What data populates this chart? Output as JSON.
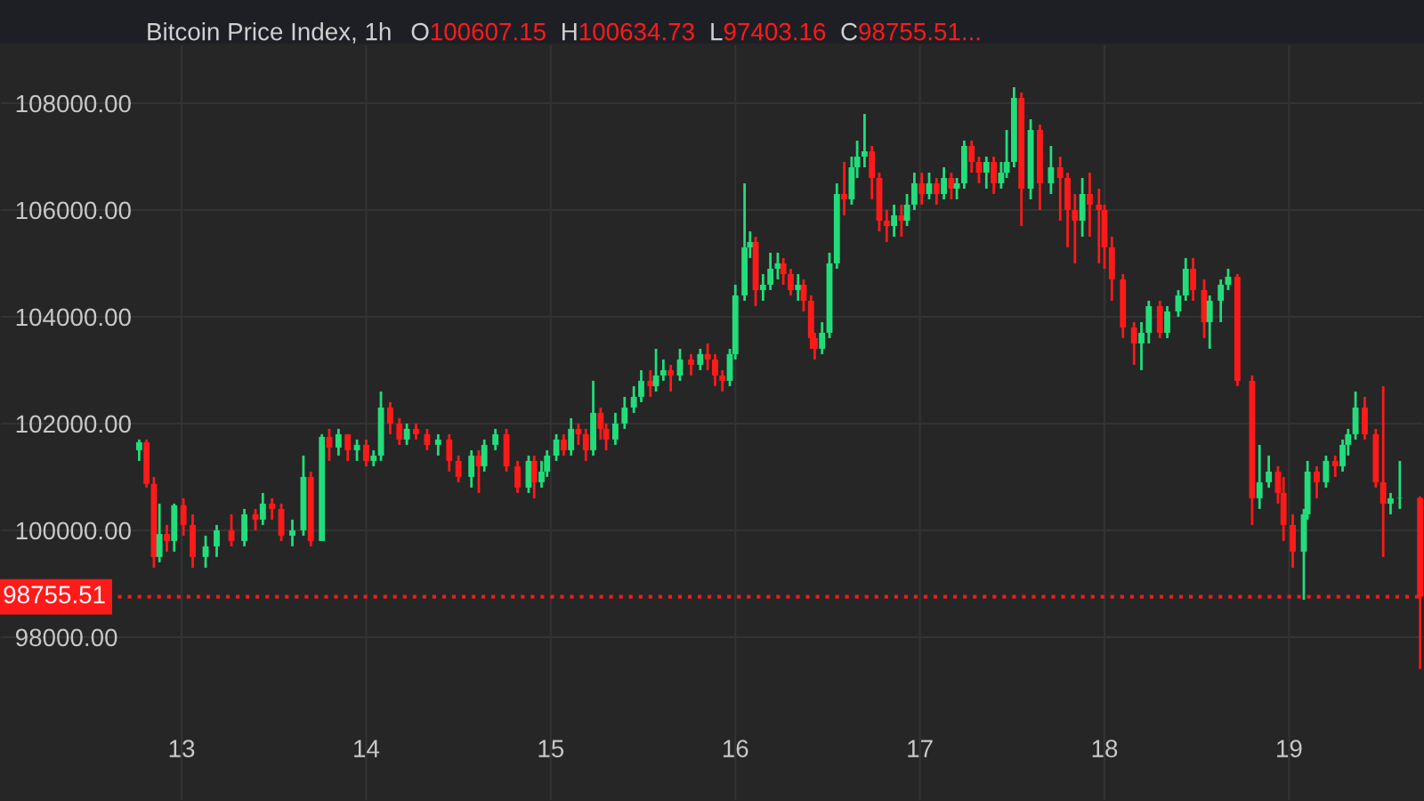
{
  "chart_data": {
    "type": "candlestick",
    "title": "Bitcoin Price Index, 1h",
    "annotations": [
      "O100607.15",
      "H100634.73",
      "L97403.16",
      "C98755.51..."
    ],
    "x": [
      12.77,
      12.81,
      12.85,
      12.88,
      12.92,
      12.96,
      13.01,
      13.06,
      13.13,
      13.19,
      13.27,
      13.34,
      13.4,
      13.44,
      13.49,
      13.54,
      13.6,
      13.66,
      13.7,
      13.76,
      13.8,
      13.85,
      13.9,
      13.95,
      14.0,
      14.04,
      14.08,
      14.13,
      14.18,
      14.22,
      14.27,
      14.33,
      14.39,
      14.45,
      14.5,
      14.57,
      14.61,
      14.64,
      14.7,
      14.76,
      14.82,
      14.88,
      14.91,
      14.95,
      14.98,
      15.03,
      15.07,
      15.11,
      15.15,
      15.19,
      15.23,
      15.27,
      15.3,
      15.35,
      15.4,
      15.45,
      15.49,
      15.54,
      15.57,
      15.61,
      15.65,
      15.7,
      15.76,
      15.81,
      15.85,
      15.89,
      15.93,
      15.97,
      16.0,
      16.05,
      16.08,
      16.11,
      16.15,
      16.19,
      16.23,
      16.26,
      16.3,
      16.34,
      16.37,
      16.41,
      16.43,
      16.47,
      16.51,
      16.55,
      16.59,
      16.63,
      16.66,
      16.7,
      16.74,
      16.78,
      16.82,
      16.86,
      16.9,
      16.93,
      16.97,
      17.01,
      17.05,
      17.09,
      17.13,
      17.17,
      17.2,
      17.24,
      17.28,
      17.32,
      17.36,
      17.4,
      17.44,
      17.47,
      17.51,
      17.55,
      17.6,
      17.65,
      17.71,
      17.76,
      17.8,
      17.84,
      17.88,
      17.92,
      17.97,
      18.0,
      18.04,
      18.1,
      18.16,
      18.2,
      18.24,
      18.3,
      18.34,
      18.4,
      18.44,
      18.48,
      18.54,
      18.57,
      18.63,
      18.67,
      18.72,
      18.8,
      18.84,
      18.89,
      18.94,
      18.97,
      19.02,
      19.08,
      19.1,
      19.15,
      19.2,
      19.25,
      19.29,
      19.32,
      19.36,
      19.41,
      19.47,
      19.51,
      19.55,
      19.6,
      19.71
    ],
    "ohlc": [
      [
        101500,
        101700,
        101300,
        101650
      ],
      [
        101650,
        101700,
        100800,
        100870
      ],
      [
        100870,
        101000,
        99300,
        99500
      ],
      [
        99500,
        100500,
        99400,
        99930
      ],
      [
        99930,
        100100,
        99600,
        99800
      ],
      [
        99800,
        100500,
        99600,
        100470
      ],
      [
        100470,
        100600,
        99900,
        100100
      ],
      [
        100100,
        100300,
        99300,
        99500
      ],
      [
        99500,
        99900,
        99300,
        99700
      ],
      [
        99700,
        100100,
        99500,
        100000
      ],
      [
        100000,
        100300,
        99700,
        99800
      ],
      [
        99800,
        100400,
        99700,
        100300
      ],
      [
        100300,
        100400,
        100000,
        100200
      ],
      [
        100200,
        100700,
        100100,
        100500
      ],
      [
        100500,
        100600,
        100200,
        100400
      ],
      [
        100400,
        100500,
        99800,
        99900
      ],
      [
        99900,
        100200,
        99700,
        100000
      ],
      [
        100000,
        101400,
        99900,
        101000
      ],
      [
        101000,
        101100,
        99700,
        99800
      ],
      [
        99800,
        101800,
        99800,
        101750
      ],
      [
        101750,
        101900,
        101300,
        101550
      ],
      [
        101550,
        101900,
        101400,
        101800
      ],
      [
        101800,
        101800,
        101300,
        101500
      ],
      [
        101500,
        101700,
        101300,
        101600
      ],
      [
        101600,
        101700,
        101200,
        101300
      ],
      [
        101300,
        101500,
        101200,
        101400
      ],
      [
        101400,
        102600,
        101300,
        102300
      ],
      [
        102300,
        102400,
        101800,
        102000
      ],
      [
        102000,
        102100,
        101600,
        101700
      ],
      [
        101700,
        102000,
        101600,
        101900
      ],
      [
        101900,
        102000,
        101700,
        101800
      ],
      [
        101800,
        101900,
        101500,
        101600
      ],
      [
        101600,
        101800,
        101400,
        101700
      ],
      [
        101700,
        101800,
        101100,
        101300
      ],
      [
        101300,
        101400,
        100900,
        101000
      ],
      [
        101000,
        101500,
        100800,
        101400
      ],
      [
        101400,
        101500,
        100700,
        101200
      ],
      [
        101200,
        101700,
        101100,
        101600
      ],
      [
        101600,
        101900,
        101500,
        101800
      ],
      [
        101800,
        101900,
        101100,
        101200
      ],
      [
        101200,
        101300,
        100700,
        100800
      ],
      [
        100800,
        101400,
        100700,
        101300
      ],
      [
        101300,
        101400,
        100600,
        100900
      ],
      [
        100900,
        101300,
        100800,
        101100
      ],
      [
        101100,
        101500,
        101000,
        101400
      ],
      [
        101400,
        101800,
        101300,
        101700
      ],
      [
        101700,
        101800,
        101400,
        101500
      ],
      [
        101500,
        102100,
        101400,
        101900
      ],
      [
        101900,
        102000,
        101600,
        101800
      ],
      [
        101800,
        101900,
        101300,
        101500
      ],
      [
        101500,
        102800,
        101400,
        102200
      ],
      [
        102200,
        102300,
        101700,
        101900
      ],
      [
        101900,
        102000,
        101500,
        101700
      ],
      [
        101700,
        102200,
        101600,
        102000
      ],
      [
        102000,
        102500,
        101900,
        102300
      ],
      [
        102300,
        102700,
        102200,
        102500
      ],
      [
        102500,
        103000,
        102400,
        102800
      ],
      [
        102800,
        103000,
        102500,
        102700
      ],
      [
        102700,
        103400,
        102600,
        102900
      ],
      [
        102900,
        103200,
        102800,
        103000
      ],
      [
        103000,
        103100,
        102600,
        102900
      ],
      [
        102900,
        103400,
        102800,
        103200
      ],
      [
        103200,
        103300,
        102900,
        103100
      ],
      [
        103100,
        103400,
        103000,
        103300
      ],
      [
        103300,
        103500,
        103000,
        103200
      ],
      [
        103200,
        103300,
        102700,
        102900
      ],
      [
        102900,
        103000,
        102600,
        102800
      ],
      [
        102800,
        103400,
        102700,
        103300
      ],
      [
        103300,
        104600,
        103200,
        104400
      ],
      [
        104400,
        106500,
        104300,
        105300
      ],
      [
        105300,
        105600,
        105100,
        105400
      ],
      [
        105400,
        105500,
        104200,
        104500
      ],
      [
        104500,
        104800,
        104300,
        104600
      ],
      [
        104600,
        105200,
        104500,
        104900
      ],
      [
        104900,
        105200,
        104700,
        105000
      ],
      [
        105000,
        105100,
        104600,
        104800
      ],
      [
        104800,
        104900,
        104400,
        104500
      ],
      [
        104500,
        104800,
        104300,
        104600
      ],
      [
        104600,
        104700,
        104100,
        104300
      ],
      [
        104300,
        104400,
        103400,
        103600
      ],
      [
        103600,
        103700,
        103200,
        103400
      ],
      [
        103400,
        103900,
        103300,
        103700
      ],
      [
        103700,
        105200,
        103600,
        105000
      ],
      [
        105000,
        106500,
        104900,
        106300
      ],
      [
        106300,
        106900,
        105900,
        106200
      ],
      [
        106200,
        107000,
        106100,
        106800
      ],
      [
        106800,
        107300,
        106600,
        107000
      ],
      [
        107000,
        107800,
        106800,
        107100
      ],
      [
        107100,
        107200,
        106200,
        106600
      ],
      [
        106600,
        106700,
        105600,
        105800
      ],
      [
        105800,
        106000,
        105400,
        105700
      ],
      [
        105700,
        106100,
        105500,
        105900
      ],
      [
        105900,
        106100,
        105500,
        105800
      ],
      [
        105800,
        106300,
        105700,
        106100
      ],
      [
        106100,
        106700,
        106000,
        106500
      ],
      [
        106500,
        106700,
        106100,
        106300
      ],
      [
        106300,
        106700,
        106200,
        106500
      ],
      [
        106500,
        106600,
        106100,
        106300
      ],
      [
        106300,
        106800,
        106200,
        106600
      ],
      [
        106600,
        106700,
        106200,
        106400
      ],
      [
        106400,
        106600,
        106200,
        106500
      ],
      [
        106500,
        107300,
        106400,
        107200
      ],
      [
        107200,
        107300,
        106700,
        106900
      ],
      [
        106900,
        107000,
        106500,
        106700
      ],
      [
        106700,
        107000,
        106400,
        106900
      ],
      [
        106900,
        107000,
        106300,
        106500
      ],
      [
        106500,
        106900,
        106400,
        106700
      ],
      [
        106700,
        107500,
        106600,
        106900
      ],
      [
        106900,
        108300,
        106800,
        108100
      ],
      [
        108100,
        108200,
        105700,
        106400
      ],
      [
        106400,
        107700,
        106200,
        107500
      ],
      [
        107500,
        107600,
        106000,
        106500
      ],
      [
        106500,
        107200,
        106300,
        106800
      ],
      [
        106800,
        107000,
        105800,
        106600
      ],
      [
        106600,
        106700,
        105300,
        106000
      ],
      [
        106000,
        106300,
        105000,
        105800
      ],
      [
        105800,
        106600,
        105500,
        106300
      ],
      [
        106300,
        106700,
        105500,
        106100
      ],
      [
        106100,
        106400,
        105000,
        106000
      ],
      [
        106000,
        106100,
        104900,
        105300
      ],
      [
        105300,
        105500,
        104300,
        104700
      ],
      [
        104700,
        104800,
        103600,
        103800
      ],
      [
        103800,
        103900,
        103100,
        103500
      ],
      [
        103500,
        103900,
        103000,
        103700
      ],
      [
        103700,
        104300,
        103500,
        104200
      ],
      [
        104200,
        104300,
        103600,
        103700
      ],
      [
        103700,
        104200,
        103600,
        104100
      ],
      [
        104100,
        104500,
        104000,
        104400
      ],
      [
        104400,
        105100,
        104300,
        104900
      ],
      [
        104900,
        105100,
        104300,
        104500
      ],
      [
        104500,
        104700,
        103600,
        103900
      ],
      [
        103900,
        104400,
        103400,
        104300
      ],
      [
        104300,
        104700,
        103900,
        104600
      ],
      [
        104600,
        104900,
        104500,
        104750
      ],
      [
        104750,
        104800,
        102700,
        102800
      ],
      [
        102800,
        102900,
        100100,
        100600
      ],
      [
        100600,
        101600,
        100400,
        100900
      ],
      [
        100900,
        101400,
        100800,
        101100
      ],
      [
        101100,
        101200,
        100500,
        100700
      ],
      [
        100700,
        101000,
        99800,
        100100
      ],
      [
        100100,
        100300,
        99300,
        99600
      ],
      [
        99600,
        100400,
        98700,
        100300
      ],
      [
        100300,
        101300,
        100200,
        101100
      ],
      [
        101100,
        101200,
        100600,
        100900
      ],
      [
        100900,
        101400,
        100800,
        101300
      ],
      [
        101300,
        101400,
        101000,
        101200
      ],
      [
        101200,
        101700,
        101100,
        101600
      ],
      [
        101600,
        101900,
        101400,
        101800
      ],
      [
        101800,
        102600,
        101700,
        102300
      ],
      [
        102300,
        102500,
        101700,
        101800
      ],
      [
        101800,
        101900,
        100800,
        100900
      ],
      [
        100900,
        102700,
        99500,
        100500
      ],
      [
        100500,
        100700,
        100300,
        100600
      ],
      [
        100600,
        101300,
        100400,
        100607.15
      ],
      [
        100607.15,
        100634.73,
        97403.16,
        98755.51
      ]
    ],
    "xlim": [
      12.016,
      19.731
    ],
    "xticks": [
      13,
      14,
      15,
      16,
      17,
      18,
      19
    ],
    "ylim": [
      94930,
      109100
    ],
    "yticks": [
      {
        "value": 98000,
        "label": "98000.00"
      },
      {
        "value": 100000,
        "label": "100000.00"
      },
      {
        "value": 102000,
        "label": "102000.00"
      },
      {
        "value": 104000,
        "label": "104000.00"
      },
      {
        "value": 106000,
        "label": "106000.00"
      },
      {
        "value": 108000,
        "label": "108000.00"
      }
    ],
    "grid": true,
    "ref_lines": [
      {
        "axis": "y",
        "value": 98755.51,
        "label": "98755.51",
        "color": "#ff1a1a",
        "line_style": "dotted"
      }
    ]
  }
}
